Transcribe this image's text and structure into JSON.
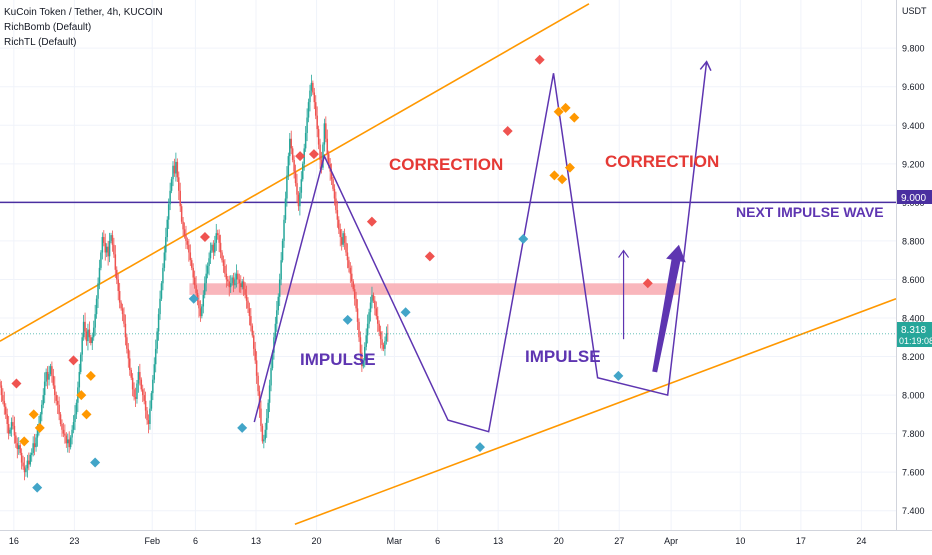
{
  "legend": {
    "symbol_line": "KuCoin Token / Tether, 4h, KUCOIN",
    "indicator_1": "RichBomb (Default)",
    "indicator_2": "RichTL (Default)"
  },
  "currency": "USDT",
  "price_label": {
    "value": "8.318",
    "countdown": "01:19:08"
  },
  "level_label": "9.000",
  "colors": {
    "up": "#26a69a",
    "down": "#ef5350",
    "channel": "#ff9800",
    "wave": "#5e35b1",
    "level": "#4a2fa0",
    "zone": "#f8a9b0",
    "sell_marker": "#ef5350",
    "buy_marker": "#42a5c8",
    "bomb_marker": "#ff9800",
    "price_line": "#26a69a",
    "correction_text": "#e53935",
    "impulse_text": "#5e35b1"
  },
  "annotations": {
    "correction_1": "CORRECTION",
    "correction_2": "CORRECTION",
    "impulse_1": "IMPULSE",
    "impulse_2": "IMPULSE",
    "next_wave": "NEXT IMPULSE WAVE"
  },
  "chart_data": {
    "type": "candlestick",
    "symbol": "KuCoin Token / Tether",
    "interval": "4h",
    "exchange": "KUCOIN",
    "y_axis": {
      "range": [
        7.3,
        10.05
      ],
      "ticks": [
        "9.800",
        "9.600",
        "9.400",
        "9.200",
        "9.000",
        "8.800",
        "8.600",
        "8.400",
        "8.200",
        "8.000",
        "7.800",
        "7.600",
        "7.400"
      ],
      "tick_values": [
        9.8,
        9.6,
        9.4,
        9.2,
        9.0,
        8.8,
        8.6,
        8.4,
        8.2,
        8.0,
        7.8,
        7.6,
        7.4
      ]
    },
    "x_axis": {
      "ticks": [
        "16",
        "23",
        "Feb",
        "6",
        "13",
        "20",
        "Mar",
        "6",
        "13",
        "20",
        "27",
        "Apr",
        "10",
        "17",
        "24"
      ],
      "tick_days": [
        0,
        7,
        16,
        21,
        28,
        35,
        44,
        49,
        56,
        63,
        70,
        76,
        84,
        91,
        98
      ],
      "range_days": [
        -1.6,
        102
      ]
    },
    "last_price": 8.318,
    "horizontal_level": 9.0,
    "resistance_zone": {
      "x": [
        20.3,
        77
      ],
      "y": [
        8.52,
        8.58
      ]
    },
    "channel_lines": [
      {
        "x": [
          -1.6,
          66.5
        ],
        "y": [
          8.28,
          10.03
        ]
      },
      {
        "x": [
          32.5,
          102
        ],
        "y": [
          7.33,
          8.5
        ]
      }
    ],
    "wave_path": [
      {
        "x": [
          27.8,
          35.9,
          50.2,
          54.9,
          62.4,
          67.5,
          75.6,
          80.1
        ],
        "y": [
          7.86,
          9.24,
          7.87,
          7.81,
          9.67,
          8.09,
          8.0,
          9.73
        ]
      }
    ],
    "projection_arrows": [
      {
        "x": [
          70.5,
          70.5
        ],
        "y": [
          8.29,
          8.75
        ]
      },
      {
        "x": [
          74.1,
          76.9
        ],
        "y": [
          8.12,
          8.78
        ]
      }
    ],
    "candles": {
      "start_day": -1.6,
      "step_days": 0.1667,
      "close": [
        8.05,
        8.0,
        7.97,
        7.94,
        7.9,
        7.85,
        7.8,
        7.82,
        7.86,
        7.84,
        7.79,
        7.75,
        7.72,
        7.74,
        7.7,
        7.65,
        7.63,
        7.6,
        7.62,
        7.66,
        7.64,
        7.69,
        7.7,
        7.75,
        7.73,
        7.78,
        7.82,
        7.85,
        7.9,
        7.95,
        8.0,
        8.07,
        8.12,
        8.08,
        8.11,
        8.15,
        8.1,
        8.05,
        8.0,
        7.97,
        7.95,
        7.9,
        7.85,
        7.82,
        7.8,
        7.79,
        7.75,
        7.77,
        7.73,
        7.78,
        7.82,
        7.86,
        7.9,
        7.96,
        8.04,
        8.12,
        8.21,
        8.3,
        8.38,
        8.33,
        8.28,
        8.34,
        8.3,
        8.27,
        8.3,
        8.35,
        8.42,
        8.5,
        8.58,
        8.66,
        8.74,
        8.82,
        8.79,
        8.74,
        8.77,
        8.72,
        8.8,
        8.83,
        8.78,
        8.73,
        8.65,
        8.6,
        8.54,
        8.48,
        8.45,
        8.42,
        8.37,
        8.3,
        8.24,
        8.19,
        8.13,
        8.09,
        8.03,
        7.99,
        7.98,
        8.06,
        8.12,
        8.08,
        8.03,
        8.0,
        7.97,
        7.92,
        7.87,
        7.85,
        7.93,
        8.01,
        8.08,
        8.16,
        8.24,
        8.33,
        8.42,
        8.5,
        8.58,
        8.66,
        8.74,
        8.82,
        8.91,
        8.99,
        9.06,
        9.12,
        9.19,
        9.15,
        9.21,
        9.13,
        9.06,
        8.98,
        8.9,
        8.86,
        8.83,
        8.8,
        8.78,
        8.74,
        8.7,
        8.66,
        8.61,
        8.57,
        8.53,
        8.49,
        8.45,
        8.41,
        8.46,
        8.52,
        8.58,
        8.63,
        8.67,
        8.71,
        8.75,
        8.78,
        8.74,
        8.79,
        8.84,
        8.83,
        8.79,
        8.74,
        8.7,
        8.67,
        8.63,
        8.6,
        8.59,
        8.56,
        8.58,
        8.61,
        8.57,
        8.6,
        8.63,
        8.6,
        8.58,
        8.56,
        8.59,
        8.55,
        8.52,
        8.49,
        8.45,
        8.41,
        8.36,
        8.31,
        8.24,
        8.18,
        8.1,
        8.02,
        7.93,
        7.84,
        7.76,
        7.77,
        7.82,
        7.88,
        7.96,
        8.05,
        8.14,
        8.22,
        8.3,
        8.37,
        8.44,
        8.51,
        8.6,
        8.7,
        8.8,
        8.91,
        9.02,
        9.14,
        9.24,
        9.33,
        9.28,
        9.22,
        9.16,
        9.1,
        9.04,
        8.98,
        9.05,
        9.12,
        9.2,
        9.28,
        9.36,
        9.44,
        9.52,
        9.58,
        9.62,
        9.57,
        9.52,
        9.45,
        9.38,
        9.3,
        9.22,
        9.18,
        9.3,
        9.41,
        9.33,
        9.25,
        9.2,
        9.16,
        9.12,
        9.07,
        9.02,
        8.96,
        8.91,
        8.86,
        8.82,
        8.78,
        8.84,
        8.79,
        8.74,
        8.7,
        8.66,
        8.63,
        8.59,
        8.55,
        8.5,
        8.45,
        8.38,
        8.3,
        8.22,
        8.15,
        8.18,
        8.25,
        8.31,
        8.37,
        8.43,
        8.48,
        8.52,
        8.49,
        8.45,
        8.41,
        8.37,
        8.33,
        8.29,
        8.26,
        8.24,
        8.28,
        8.32,
        8.318
      ]
    },
    "sell_markers": [
      {
        "x": 0.3,
        "y": 8.06
      },
      {
        "x": 6.9,
        "y": 8.18
      },
      {
        "x": 22.1,
        "y": 8.82
      },
      {
        "x": 33.1,
        "y": 9.24
      },
      {
        "x": 34.7,
        "y": 9.25
      },
      {
        "x": 41.4,
        "y": 8.9
      },
      {
        "x": 48.1,
        "y": 8.72
      },
      {
        "x": 57.1,
        "y": 9.37
      },
      {
        "x": 60.8,
        "y": 9.74
      },
      {
        "x": 73.3,
        "y": 8.58
      }
    ],
    "buy_markers": [
      {
        "x": 2.7,
        "y": 7.52
      },
      {
        "x": 9.4,
        "y": 7.65
      },
      {
        "x": 20.8,
        "y": 8.5
      },
      {
        "x": 26.4,
        "y": 7.83
      },
      {
        "x": 38.6,
        "y": 8.39
      },
      {
        "x": 45.3,
        "y": 8.43
      },
      {
        "x": 53.9,
        "y": 7.73
      },
      {
        "x": 58.9,
        "y": 8.81
      },
      {
        "x": 69.9,
        "y": 8.1
      }
    ],
    "bomb_markers": [
      {
        "x": 1.2,
        "y": 7.76
      },
      {
        "x": 2.3,
        "y": 7.9
      },
      {
        "x": 3.0,
        "y": 7.83
      },
      {
        "x": 7.8,
        "y": 8.0
      },
      {
        "x": 8.4,
        "y": 7.9
      },
      {
        "x": 8.9,
        "y": 8.1
      },
      {
        "x": 62.5,
        "y": 9.14
      },
      {
        "x": 63.0,
        "y": 9.47
      },
      {
        "x": 63.4,
        "y": 9.12
      },
      {
        "x": 63.8,
        "y": 9.49
      },
      {
        "x": 64.3,
        "y": 9.18
      },
      {
        "x": 64.8,
        "y": 9.44
      }
    ]
  }
}
